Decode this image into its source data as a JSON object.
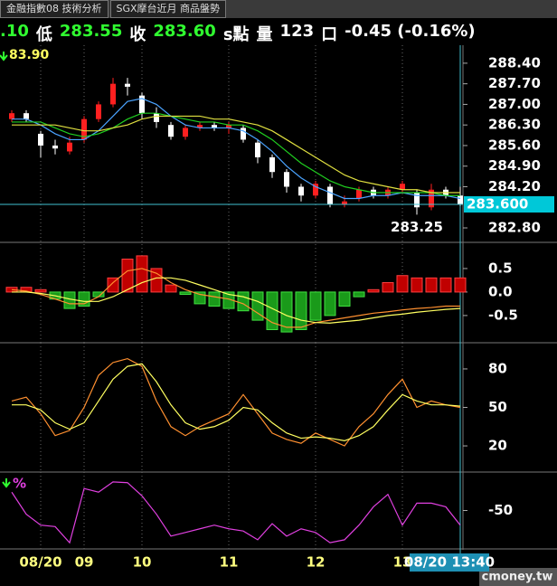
{
  "tabs": [
    "金融指數08 技術分析",
    "SGX摩台近月 商品盤勢"
  ],
  "quote": [
    {
      "text": ".10",
      "color": "#30ff30"
    },
    {
      "text": "低",
      "color": "#ffffff"
    },
    {
      "text": "283.55",
      "color": "#30ff30"
    },
    {
      "text": "收",
      "color": "#ffffff"
    },
    {
      "text": "283.60",
      "color": "#30ff30"
    },
    {
      "text": "s點",
      "color": "#ffffff"
    },
    {
      "text": "量",
      "color": "#ffffff"
    },
    {
      "text": "123",
      "color": "#ffffff"
    },
    {
      "text": "口",
      "color": "#ffffff"
    },
    {
      "text": "-0.45 (-0.16%)",
      "color": "#ffffff"
    }
  ],
  "brand": "cmoney.tw",
  "chart_data": [
    {
      "type": "candlestick",
      "indicator_label": "83.90",
      "cursor_label": "08/20 13:40",
      "categories": [
        null,
        null,
        "08/20",
        null,
        null,
        "09",
        null,
        null,
        null,
        "10",
        null,
        null,
        null,
        null,
        null,
        "11",
        null,
        null,
        null,
        null,
        null,
        "12",
        null,
        null,
        null,
        null,
        null,
        "13",
        null,
        null,
        null,
        null
      ],
      "open": [
        286.5,
        286.7,
        286.0,
        285.6,
        285.4,
        285.8,
        286.5,
        287.0,
        287.7,
        287.3,
        286.7,
        286.3,
        285.9,
        286.2,
        286.3,
        286.2,
        286.2,
        285.7,
        285.2,
        284.7,
        284.2,
        283.9,
        284.2,
        283.6,
        283.8,
        284.1,
        283.9,
        284.1,
        284.0,
        283.5,
        284.1,
        283.9
      ],
      "high": [
        286.8,
        286.8,
        286.1,
        285.8,
        285.9,
        286.6,
        287.1,
        287.9,
        287.9,
        287.4,
        286.9,
        286.4,
        286.3,
        286.4,
        286.4,
        286.4,
        286.3,
        285.8,
        285.3,
        284.8,
        284.3,
        284.4,
        284.3,
        283.9,
        284.2,
        284.2,
        284.2,
        284.4,
        284.1,
        284.3,
        284.2,
        284.2
      ],
      "low": [
        286.4,
        286.4,
        285.2,
        285.3,
        285.3,
        285.7,
        286.4,
        286.9,
        287.3,
        286.5,
        286.2,
        285.8,
        285.8,
        286.1,
        286.1,
        286.0,
        285.7,
        285.0,
        284.5,
        284.0,
        283.7,
        283.8,
        283.5,
        283.5,
        283.7,
        283.8,
        283.8,
        284.0,
        283.25,
        283.4,
        283.8,
        283.55
      ],
      "close": [
        286.7,
        286.5,
        285.6,
        285.5,
        285.7,
        286.5,
        287.0,
        287.7,
        287.6,
        286.7,
        286.4,
        285.9,
        286.2,
        286.3,
        286.2,
        286.3,
        285.8,
        285.2,
        284.7,
        284.2,
        283.9,
        284.3,
        283.6,
        283.7,
        284.1,
        283.9,
        284.1,
        284.3,
        283.5,
        284.1,
        283.9,
        283.6
      ],
      "up_color": "#ff2020",
      "down_color": "#ffffff",
      "series": [
        {
          "color": "#4aa3ff",
          "values": [
            286.5,
            286.5,
            286.3,
            286.0,
            285.8,
            285.8,
            286.1,
            286.6,
            287.1,
            287.2,
            287.0,
            286.6,
            286.3,
            286.2,
            286.2,
            286.2,
            286.1,
            285.8,
            285.4,
            284.9,
            284.5,
            284.2,
            284.0,
            283.8,
            283.8,
            283.9,
            283.9,
            284.0,
            283.9,
            283.9,
            283.9,
            283.8
          ]
        },
        {
          "color": "#20d020",
          "values": [
            286.4,
            286.4,
            286.4,
            286.2,
            286.0,
            285.9,
            286.0,
            286.2,
            286.5,
            286.7,
            286.7,
            286.6,
            286.5,
            286.4,
            286.4,
            286.3,
            286.3,
            286.1,
            285.8,
            285.4,
            285.0,
            284.7,
            284.4,
            284.2,
            284.1,
            284.0,
            284.0,
            284.0,
            284.0,
            284.0,
            283.9,
            283.9
          ]
        },
        {
          "color": "#e0e040",
          "values": [
            286.3,
            286.3,
            286.3,
            286.3,
            286.2,
            286.1,
            286.1,
            286.2,
            286.3,
            286.5,
            286.6,
            286.6,
            286.6,
            286.6,
            286.5,
            286.5,
            286.4,
            286.3,
            286.1,
            285.8,
            285.5,
            285.2,
            284.9,
            284.6,
            284.4,
            284.3,
            284.2,
            284.1,
            284.1,
            284.0,
            284.0,
            284.0
          ]
        }
      ],
      "last_price": {
        "value": 283.6,
        "label": "283.600"
      },
      "low_mark": {
        "value": 283.25,
        "label": "283.25"
      },
      "ylim": [
        282.37,
        288.95
      ],
      "yticks": [
        {
          "value": 288.4,
          "label": "288.40"
        },
        {
          "value": 287.7,
          "label": "287.70"
        },
        {
          "value": 287.0,
          "label": "287.00"
        },
        {
          "value": 286.3,
          "label": "286.30"
        },
        {
          "value": 285.6,
          "label": "285.60"
        },
        {
          "value": 284.9,
          "label": "284.90"
        },
        {
          "value": 284.2,
          "label": "284.20"
        },
        {
          "value": 282.8,
          "label": "282.80"
        }
      ]
    },
    {
      "type": "bar",
      "pos_color": "#c00000",
      "neg_color": "#1a9a1a",
      "values": [
        0.1,
        0.1,
        0.05,
        -0.15,
        -0.35,
        -0.3,
        -0.1,
        0.3,
        0.7,
        0.77,
        0.5,
        0.15,
        -0.05,
        -0.25,
        -0.3,
        -0.35,
        -0.4,
        -0.6,
        -0.8,
        -0.85,
        -0.8,
        -0.6,
        -0.5,
        -0.3,
        -0.1,
        0.05,
        0.2,
        0.35,
        0.3,
        0.3,
        0.3,
        0.3
      ],
      "series": [
        {
          "color": "#ff9030",
          "values": [
            0.05,
            0.02,
            -0.05,
            -0.15,
            -0.25,
            -0.25,
            -0.1,
            0.2,
            0.45,
            0.5,
            0.4,
            0.2,
            0.05,
            -0.05,
            -0.1,
            -0.15,
            -0.25,
            -0.45,
            -0.65,
            -0.75,
            -0.75,
            -0.65,
            -0.6,
            -0.55,
            -0.5,
            -0.45,
            -0.42,
            -0.38,
            -0.35,
            -0.33,
            -0.3,
            -0.3
          ]
        },
        {
          "color": "#ffff60",
          "values": [
            0.0,
            0.0,
            -0.03,
            -0.08,
            -0.15,
            -0.2,
            -0.2,
            -0.1,
            0.05,
            0.2,
            0.3,
            0.3,
            0.25,
            0.15,
            0.05,
            -0.05,
            -0.1,
            -0.2,
            -0.35,
            -0.5,
            -0.6,
            -0.65,
            -0.66,
            -0.63,
            -0.6,
            -0.55,
            -0.5,
            -0.47,
            -0.43,
            -0.4,
            -0.37,
            -0.35
          ]
        }
      ],
      "ylim": [
        -1.06,
        0.98
      ],
      "yticks": [
        0.5,
        {
          "value": 0,
          "label": "0.0"
        },
        -0.5
      ]
    },
    {
      "type": "line",
      "series": [
        {
          "color": "#ff9030",
          "values": [
            55,
            58,
            45,
            28,
            32,
            50,
            75,
            85,
            88,
            82,
            55,
            35,
            28,
            35,
            40,
            45,
            60,
            45,
            30,
            25,
            22,
            30,
            25,
            20,
            35,
            45,
            60,
            72,
            50,
            55,
            52,
            50
          ]
        },
        {
          "color": "#ffff60",
          "values": [
            52,
            52,
            48,
            38,
            33,
            38,
            55,
            72,
            82,
            84,
            70,
            52,
            38,
            33,
            35,
            40,
            50,
            48,
            38,
            30,
            26,
            27,
            26,
            24,
            28,
            35,
            48,
            60,
            55,
            52,
            52,
            51
          ]
        }
      ],
      "ylim": [
        1,
        99
      ],
      "yticks": [
        80,
        50,
        20
      ]
    },
    {
      "type": "line",
      "label": "%",
      "series": [
        {
          "color": "#e040e0",
          "values": [
            -25,
            -55,
            -70,
            -72,
            -94,
            -20,
            -25,
            -11,
            -12,
            -30,
            -55,
            -85,
            -80,
            -75,
            -70,
            -75,
            -78,
            -90,
            -68,
            -85,
            -75,
            -80,
            -94,
            -90,
            -70,
            -45,
            -28,
            -70,
            -40,
            -40,
            -45,
            -70
          ]
        }
      ],
      "ylim": [
        -100,
        0
      ],
      "yticks": [
        -50
      ]
    }
  ]
}
